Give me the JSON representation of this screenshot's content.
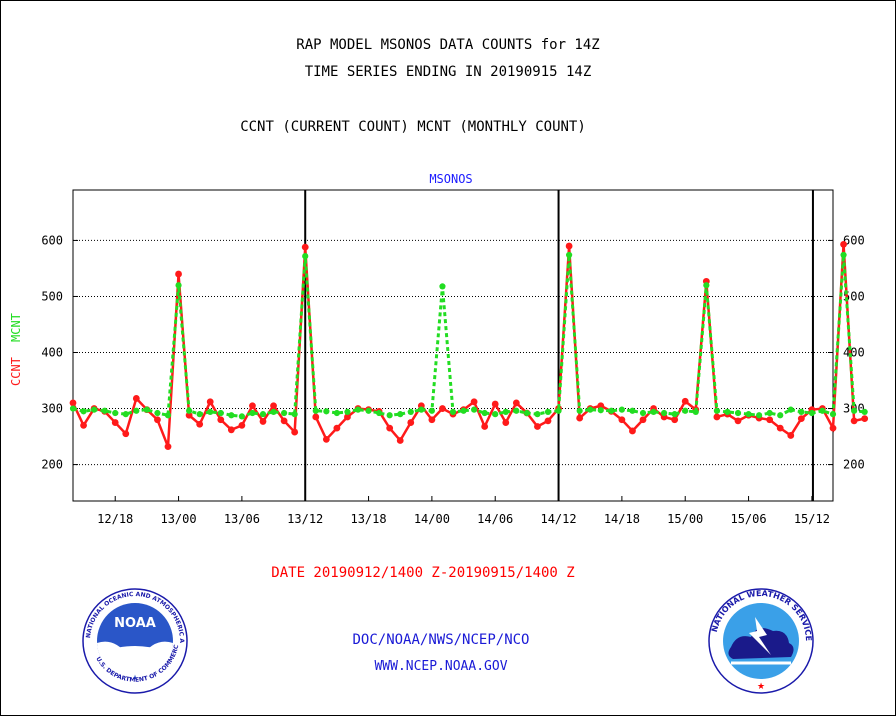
{
  "header": {
    "title1": "RAP MODEL MSONOS DATA COUNTS for 14Z",
    "title2": "TIME SERIES ENDING IN 20190915 14Z",
    "subtitle": "CCNT (CURRENT COUNT) MCNT (MONTHLY COUNT)"
  },
  "footer": {
    "date_range": "DATE 20190912/1400 Z-20190915/1400 Z",
    "org": "DOC/NOAA/NWS/NCEP/NCO",
    "url": "WWW.NCEP.NOAA.GOV"
  },
  "logos": {
    "left": {
      "icon": "noaa-logo",
      "ring_text": "NATIONAL OCEANIC AND ATMOSPHERIC ADMINISTRATION",
      "bottom_text": "U.S. DEPARTMENT OF COMMERCE",
      "center": "NOAA"
    },
    "right": {
      "icon": "nws-logo",
      "ring_text": "NATIONAL WEATHER SERVICE"
    }
  },
  "chart_data": {
    "type": "line",
    "plot_label": "MSONOS",
    "ylabel_series": [
      "CCNT",
      "MCNT"
    ],
    "ylim": [
      135,
      690
    ],
    "yticks": [
      200,
      300,
      400,
      500,
      600
    ],
    "grid": "horizontal dotted",
    "xlim": [
      0,
      72
    ],
    "xticks": [
      {
        "label": "12/18",
        "x": 4
      },
      {
        "label": "13/00",
        "x": 10
      },
      {
        "label": "13/06",
        "x": 16
      },
      {
        "label": "13/12",
        "x": 22
      },
      {
        "label": "13/18",
        "x": 28
      },
      {
        "label": "14/00",
        "x": 34
      },
      {
        "label": "14/06",
        "x": 40
      },
      {
        "label": "14/12",
        "x": 46
      },
      {
        "label": "14/18",
        "x": 52
      },
      {
        "label": "15/00",
        "x": 58
      },
      {
        "label": "15/06",
        "x": 64
      },
      {
        "label": "15/12",
        "x": 70
      }
    ],
    "vlines": [
      22,
      46,
      70.1
    ],
    "series": [
      {
        "name": "CCNT",
        "color": "#ff1a1a",
        "values": [
          310,
          270,
          300,
          295,
          275,
          255,
          318,
          298,
          280,
          232,
          540,
          288,
          272,
          312,
          280,
          262,
          270,
          305,
          277,
          305,
          278,
          258,
          588,
          285,
          245,
          265,
          285,
          300,
          298,
          295,
          265,
          243,
          275,
          305,
          280,
          300,
          290,
          298,
          312,
          268,
          308,
          275,
          310,
          292,
          268,
          278,
          300,
          590,
          283,
          300,
          305,
          295,
          280,
          260,
          280,
          300,
          285,
          280,
          313,
          298,
          527,
          285,
          290,
          278,
          288,
          283,
          280,
          265,
          252,
          282,
          298,
          300,
          265,
          593,
          278,
          282
        ]
      },
      {
        "name": "MCNT",
        "color": "#22dd22",
        "values": [
          300,
          295,
          298,
          296,
          292,
          290,
          296,
          298,
          292,
          288,
          520,
          296,
          290,
          294,
          292,
          288,
          286,
          292,
          290,
          294,
          292,
          290,
          572,
          296,
          295,
          292,
          294,
          298,
          296,
          292,
          288,
          290,
          294,
          298,
          296,
          518,
          294,
          296,
          298,
          292,
          290,
          294,
          296,
          292,
          290,
          294,
          296,
          574,
          296,
          298,
          297,
          296,
          298,
          296,
          292,
          294,
          292,
          290,
          296,
          294,
          520,
          296,
          294,
          292,
          290,
          288,
          292,
          288,
          298,
          294,
          292,
          296,
          290,
          574,
          296,
          294
        ]
      }
    ]
  }
}
